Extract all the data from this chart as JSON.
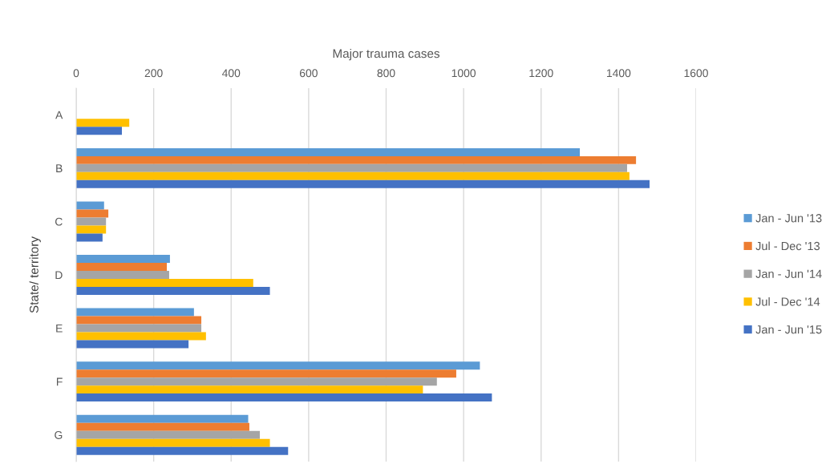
{
  "chart_data": {
    "type": "bar",
    "orientation": "horizontal",
    "xlabel": "Major trauma cases",
    "ylabel": "State/ territory",
    "categories": [
      "A",
      "B",
      "C",
      "D",
      "E",
      "F",
      "G"
    ],
    "series": [
      {
        "name": "Jan - Jun '13",
        "color": "#5b9bd5",
        "values": [
          null,
          1300,
          72,
          242,
          304,
          1042,
          444
        ]
      },
      {
        "name": "Jul - Dec '13",
        "color": "#ed7d31",
        "values": [
          null,
          1445,
          83,
          234,
          323,
          981,
          447
        ]
      },
      {
        "name": "Jan - Jun '14",
        "color": "#a5a5a5",
        "values": [
          null,
          1422,
          77,
          240,
          323,
          931,
          474
        ]
      },
      {
        "name": "Jul - Dec '14",
        "color": "#ffc000",
        "values": [
          137,
          1428,
          77,
          457,
          335,
          895,
          500
        ]
      },
      {
        "name": "Jan - Jun '15",
        "color": "#4472c4",
        "values": [
          118,
          1480,
          68,
          500,
          290,
          1073,
          547
        ]
      }
    ],
    "xlim": [
      0,
      1600
    ],
    "xticks": [
      0,
      200,
      400,
      600,
      800,
      1000,
      1200,
      1400,
      1600
    ],
    "grid": "x",
    "legend": "right"
  }
}
